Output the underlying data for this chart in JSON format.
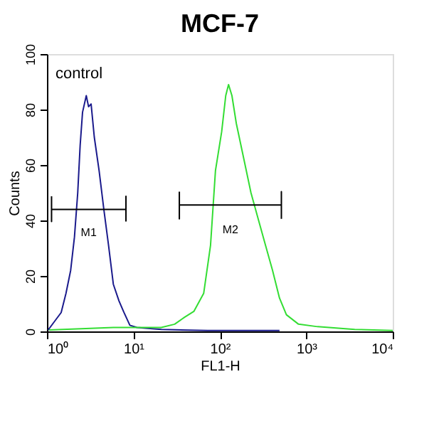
{
  "chart_data": {
    "type": "line",
    "title": "MCF-7",
    "xlabel": "FL1-H",
    "ylabel": "Counts",
    "log": "x",
    "xlim": [
      1,
      10000
    ],
    "xticks": [
      {
        "value": 1,
        "label": "10⁰"
      },
      {
        "value": 10,
        "label": "10¹"
      },
      {
        "value": 100,
        "label": "10²"
      },
      {
        "value": 1000,
        "label": "10³"
      },
      {
        "value": 10000,
        "label": "10⁴"
      }
    ],
    "ylim": [
      0,
      100
    ],
    "yticks": [
      0,
      20,
      40,
      60,
      80,
      100
    ],
    "grid": false,
    "series": [
      {
        "color": "#1a1a8c",
        "x": [
          1.03,
          1.21,
          1.46,
          1.66,
          1.88,
          2.08,
          2.27,
          2.42,
          2.58,
          2.85,
          3.03,
          3.24,
          3.53,
          4.01,
          4.55,
          5.16,
          5.86,
          6.81,
          7.73,
          9.1,
          11,
          21,
          72,
          490
        ],
        "values": [
          0.5,
          3.4,
          6.8,
          13.7,
          22,
          34,
          50,
          67,
          79,
          85,
          81,
          82,
          70,
          58,
          44,
          31,
          17,
          11,
          7,
          2.2,
          1.4,
          0.7,
          0.3,
          0.3
        ]
      },
      {
        "color": "#33dd33",
        "x": [
          1.06,
          5.86,
          21,
          30,
          39,
          50,
          65,
          78,
          89,
          105,
          117,
          126,
          138,
          155,
          190,
          229,
          275,
          331,
          407,
          490,
          589,
          813,
          1350,
          3630,
          10000
        ],
        "values": [
          0.5,
          1.4,
          1.4,
          2.6,
          5.1,
          7.2,
          13.7,
          31,
          58,
          72,
          85,
          89,
          85,
          75,
          62,
          50,
          41,
          32,
          22,
          12,
          6,
          2.6,
          1.7,
          0.7,
          0.3
        ]
      },
      {
        "color": "#000000",
        "x": [
          1.13,
          1.13,
          1.13,
          8.2,
          8.2,
          8.2
        ],
        "values": [
          48.7,
          39.6,
          44,
          44,
          48.7,
          39.6
        ]
      },
      {
        "color": "#000000",
        "x": [
          34,
          34,
          34,
          515,
          515,
          515
        ],
        "values": [
          50.4,
          40.6,
          45.6,
          45.6,
          50.4,
          40.6
        ]
      }
    ],
    "annotations": [
      "control",
      "M1",
      "M2"
    ]
  }
}
